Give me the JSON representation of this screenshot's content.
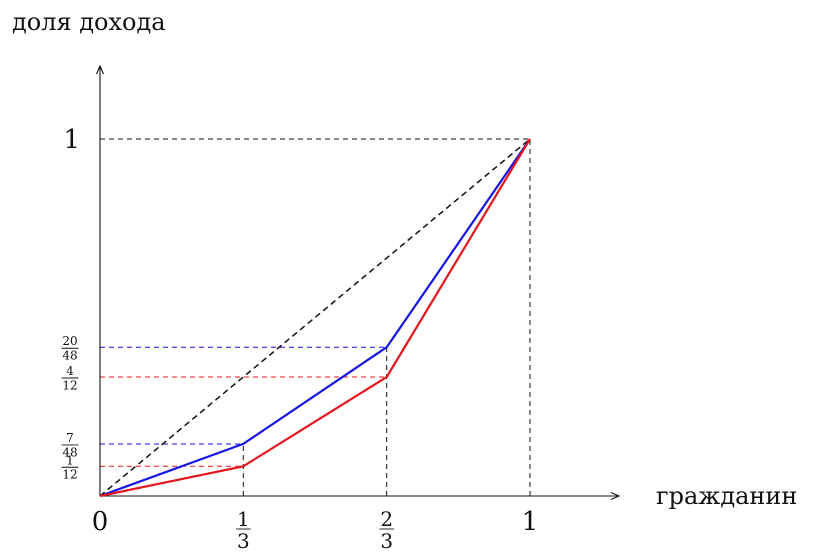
{
  "chart_data": {
    "type": "line",
    "title": "",
    "xlabel": "гражданин",
    "ylabel": "доля дохода",
    "xlim": [
      0,
      1
    ],
    "ylim": [
      0,
      1
    ],
    "grid": false,
    "legend": "none",
    "x_ticks": [
      {
        "value": 0,
        "text": "0"
      },
      {
        "value": 0.3333,
        "num": "1",
        "den": "3"
      },
      {
        "value": 0.6667,
        "num": "2",
        "den": "3"
      },
      {
        "value": 1,
        "text": "1"
      }
    ],
    "y_ticks": [
      {
        "value": 0.0833,
        "num": "1",
        "den": "12",
        "color": "#e8141b"
      },
      {
        "value": 0.1458,
        "num": "7",
        "den": "48",
        "color": "#1515e8"
      },
      {
        "value": 0.3333,
        "num": "4",
        "den": "12",
        "color": "#e8141b"
      },
      {
        "value": 0.4167,
        "num": "20",
        "den": "48",
        "color": "#1515e8"
      },
      {
        "value": 1,
        "text": "1",
        "color": "#111111"
      }
    ],
    "series": [
      {
        "color": "#111111",
        "style": "dashed",
        "points": [
          [
            0,
            0
          ],
          [
            0.3333,
            0.3333
          ],
          [
            0.6667,
            0.6667
          ],
          [
            1,
            1
          ]
        ]
      },
      {
        "color": "#1515e8",
        "style": "solid",
        "points": [
          [
            0,
            0
          ],
          [
            0.3333,
            0.1458
          ],
          [
            0.6667,
            0.4167
          ],
          [
            1,
            1
          ]
        ]
      },
      {
        "color": "#e8141b",
        "style": "solid",
        "points": [
          [
            0,
            0
          ],
          [
            0.3333,
            0.0833
          ],
          [
            0.6667,
            0.3333
          ],
          [
            1,
            1
          ]
        ]
      }
    ]
  }
}
